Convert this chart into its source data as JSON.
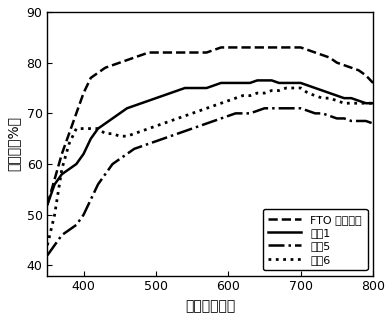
{
  "xlabel": "波长（纳米）",
  "ylabel": "透射比（%）",
  "xlim": [
    350,
    800
  ],
  "ylim": [
    38,
    90
  ],
  "xticks": [
    400,
    500,
    600,
    700,
    800
  ],
  "yticks": [
    40,
    50,
    60,
    70,
    80,
    90
  ],
  "background_color": "#ffffff",
  "series_names": [
    "FTO 导电玻璃",
    "实例1",
    "实例5",
    "实例6"
  ],
  "series_linestyles": [
    "--",
    "-",
    "-.",
    ":"
  ],
  "series_linewidths": [
    1.8,
    1.8,
    1.8,
    2.0
  ],
  "series_x": [
    [
      350,
      360,
      370,
      380,
      390,
      400,
      410,
      420,
      430,
      440,
      450,
      460,
      470,
      480,
      490,
      500,
      510,
      520,
      530,
      540,
      550,
      560,
      570,
      580,
      590,
      600,
      610,
      620,
      630,
      640,
      650,
      660,
      670,
      680,
      690,
      700,
      710,
      720,
      730,
      740,
      750,
      760,
      770,
      780,
      790,
      800
    ],
    [
      350,
      360,
      370,
      380,
      390,
      400,
      410,
      420,
      430,
      440,
      450,
      460,
      470,
      480,
      490,
      500,
      510,
      520,
      530,
      540,
      550,
      560,
      570,
      580,
      590,
      600,
      610,
      620,
      630,
      640,
      650,
      660,
      670,
      680,
      690,
      700,
      710,
      720,
      730,
      740,
      750,
      760,
      770,
      780,
      790,
      800
    ],
    [
      350,
      360,
      370,
      380,
      390,
      400,
      410,
      420,
      430,
      440,
      450,
      460,
      470,
      480,
      490,
      500,
      510,
      520,
      530,
      540,
      550,
      560,
      570,
      580,
      590,
      600,
      610,
      620,
      630,
      640,
      650,
      660,
      670,
      680,
      690,
      700,
      710,
      720,
      730,
      740,
      750,
      760,
      770,
      780,
      790,
      800
    ],
    [
      350,
      360,
      370,
      380,
      390,
      400,
      410,
      420,
      430,
      440,
      450,
      460,
      470,
      480,
      490,
      500,
      510,
      520,
      530,
      540,
      550,
      560,
      570,
      580,
      590,
      600,
      610,
      620,
      630,
      640,
      650,
      660,
      670,
      680,
      690,
      700,
      710,
      720,
      730,
      740,
      750,
      760,
      770,
      780,
      790,
      800
    ]
  ],
  "series_y": [
    [
      52,
      57,
      62,
      66,
      70,
      74,
      77,
      78,
      79,
      79.5,
      80,
      80.5,
      81,
      81.5,
      82,
      82,
      82,
      82,
      82,
      82,
      82,
      82,
      82,
      82.5,
      83,
      83,
      83,
      83,
      83,
      83,
      83,
      83,
      83,
      83,
      83,
      83,
      82.5,
      82,
      81.5,
      81,
      80,
      79.5,
      79,
      78.5,
      77.5,
      76
    ],
    [
      52,
      56,
      58,
      59,
      60,
      62,
      65,
      67,
      68,
      69,
      70,
      71,
      71.5,
      72,
      72.5,
      73,
      73.5,
      74,
      74.5,
      75,
      75,
      75,
      75,
      75.5,
      76,
      76,
      76,
      76,
      76,
      76.5,
      76.5,
      76.5,
      76,
      76,
      76,
      76,
      75.5,
      75,
      74.5,
      74,
      73.5,
      73,
      73,
      72.5,
      72,
      72
    ],
    [
      42,
      44,
      46,
      47,
      48,
      50,
      53,
      56,
      58,
      60,
      61,
      62,
      63,
      63.5,
      64,
      64.5,
      65,
      65.5,
      66,
      66.5,
      67,
      67.5,
      68,
      68.5,
      69,
      69.5,
      70,
      70,
      70,
      70.5,
      71,
      71,
      71,
      71,
      71,
      71,
      70.5,
      70,
      70,
      69.5,
      69,
      69,
      68.5,
      68.5,
      68.5,
      68
    ],
    [
      44,
      50,
      59,
      64,
      67,
      67,
      67,
      67,
      66,
      66,
      65.5,
      65.5,
      66,
      66.5,
      67,
      67.5,
      68,
      68.5,
      69,
      69.5,
      70,
      70.5,
      71,
      71.5,
      72,
      72.5,
      73,
      73.5,
      73.5,
      74,
      74,
      74.5,
      74.5,
      75,
      75,
      75,
      74,
      73.5,
      73,
      73,
      72.5,
      72,
      72,
      72,
      72,
      72
    ]
  ]
}
